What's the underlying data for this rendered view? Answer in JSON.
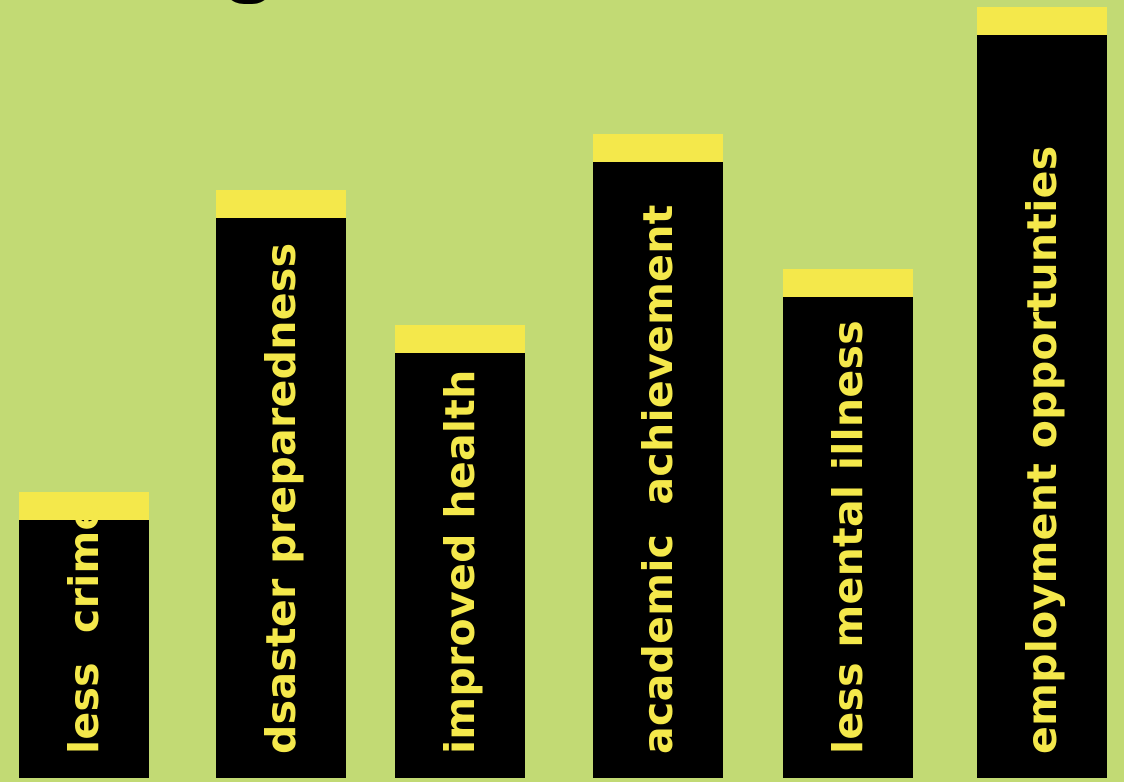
{
  "chart_data": {
    "type": "bar",
    "categories": [
      "less  crime",
      "dsaster preparedness",
      "improved health",
      "academic  achievement",
      "less mental illness",
      "employment opportunties"
    ],
    "values": [
      36,
      74,
      57,
      81,
      64,
      97
    ],
    "ylim": [
      0,
      100
    ],
    "colors": {
      "background": "#c2da74",
      "bar": "#000000",
      "bar_cap": "#f4e84b",
      "label": "#f4e84b"
    },
    "grid": false,
    "legend": "none"
  }
}
